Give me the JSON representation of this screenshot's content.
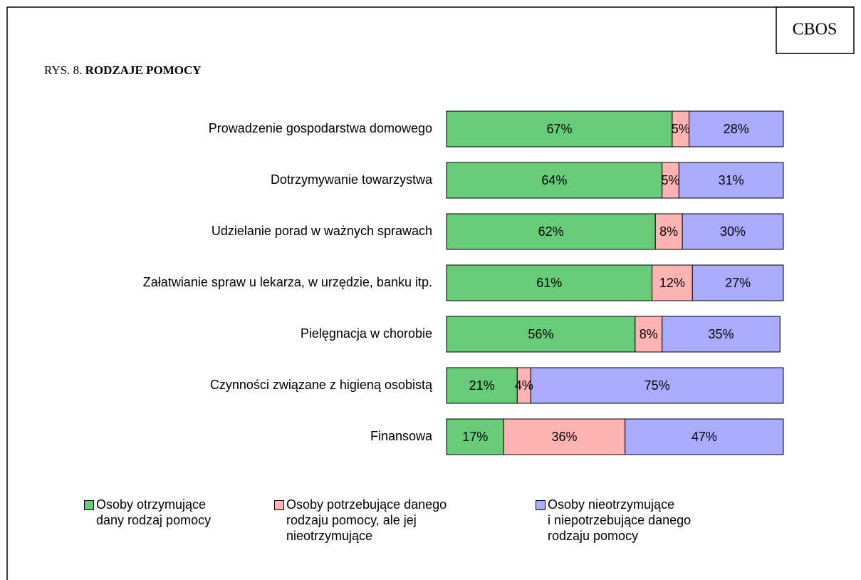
{
  "header": {
    "brand": "CBOS"
  },
  "chart_data": {
    "type": "stacked-barh",
    "figure_label": "RYS. 8.",
    "title": "RODZAJE POMOCY",
    "categories": [
      "Prowadzenie gospodarstwa domowego",
      "Dotrzymywanie towarzystwa",
      "Udzielanie porad w ważnych sprawach",
      "Załatwianie spraw u lekarza, w urzędzie, banku itp.",
      "Pielęgnacja w chorobie",
      "Czynności związane z higieną osobistą",
      "Finansowa"
    ],
    "xlim": [
      0,
      100
    ],
    "series": [
      {
        "name": "Osoby otrzymujące\ndany rodzaj pomocy",
        "color": "#66cc77",
        "values": [
          67,
          64,
          62,
          61,
          56,
          21,
          17
        ],
        "value_labels": [
          "67%",
          "64%",
          "62%",
          "61%",
          "56%",
          "21%",
          "17%"
        ]
      },
      {
        "name": "Osoby potrzebujące danego\nrodzaju pomocy, ale jej\nnieotrzymujące",
        "color": "#ffb3b3",
        "values": [
          5,
          5,
          8,
          12,
          8,
          4,
          36
        ],
        "value_labels": [
          "5%",
          "5%",
          "8%",
          "12%",
          "8%",
          "4%",
          "36%"
        ]
      },
      {
        "name": "Osoby nieotrzymujące\ni niepotrzebujące danego\nrodzaju pomocy",
        "color": "#aaaaff",
        "values": [
          28,
          31,
          30,
          27,
          35,
          75,
          47
        ],
        "value_labels": [
          "28%",
          "31%",
          "30%",
          "27%",
          "35%",
          "75%",
          "47%"
        ]
      }
    ]
  }
}
